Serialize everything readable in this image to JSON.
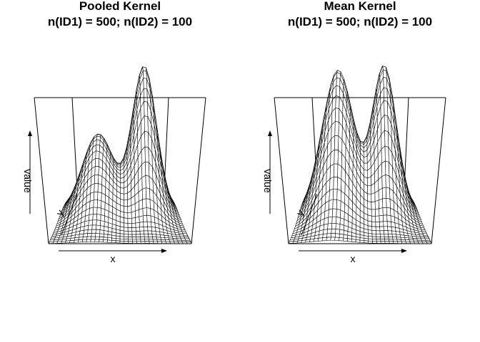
{
  "chart_data": [
    {
      "type": "surface",
      "title": "Pooled Kernel",
      "subtitle": "n(ID1) = 500; n(ID2) = 100",
      "xlabel": "x",
      "ylabel": "y",
      "zlabel": "value",
      "peaks": [
        {
          "x": 0.3,
          "y": 0.55,
          "relative_height": 0.55
        },
        {
          "x": 0.72,
          "y": 0.62,
          "relative_height": 1.0
        }
      ]
    },
    {
      "type": "surface",
      "title": "Mean Kernel",
      "subtitle": "n(ID1) = 500; n(ID2) = 100",
      "xlabel": "x",
      "ylabel": "y",
      "zlabel": "value",
      "peaks": [
        {
          "x": 0.3,
          "y": 0.55,
          "relative_height": 1.0
        },
        {
          "x": 0.72,
          "y": 0.62,
          "relative_height": 1.0
        }
      ]
    }
  ]
}
